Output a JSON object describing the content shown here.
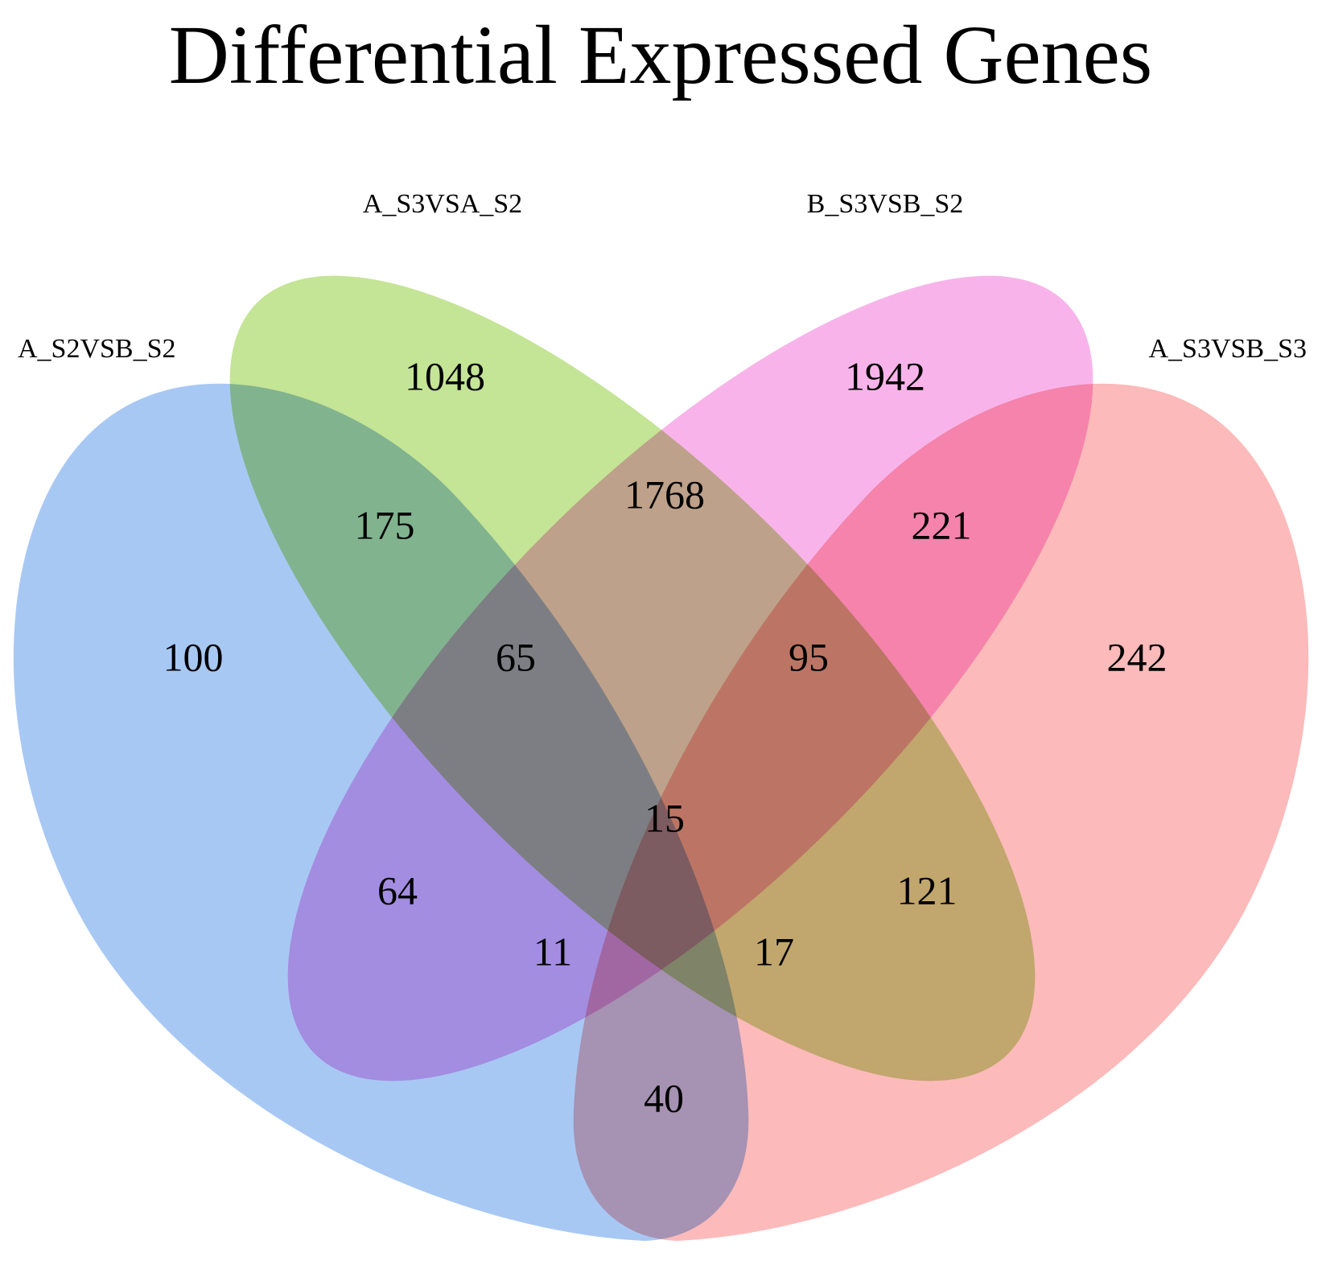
{
  "title": "Differential Expressed Genes",
  "sets": [
    {
      "name": "A_S2VSB_S2",
      "color": "#a8c8f4"
    },
    {
      "name": "A_S3VSA_S2",
      "color": "#c4e496"
    },
    {
      "name": "B_S3VSB_S2",
      "color": "#f8b4ea"
    },
    {
      "name": "A_S3VSB_S3",
      "color": "#fcbaba"
    }
  ],
  "chart_data": {
    "type": "venn",
    "title": "Differential Expressed Genes",
    "sets": [
      "A_S2VSB_S2",
      "A_S3VSA_S2",
      "B_S3VSB_S2",
      "A_S3VSB_S3"
    ],
    "regions": [
      {
        "sets": [
          "A_S2VSB_S2"
        ],
        "count": 100
      },
      {
        "sets": [
          "A_S3VSA_S2"
        ],
        "count": 1048
      },
      {
        "sets": [
          "B_S3VSB_S2"
        ],
        "count": 1942
      },
      {
        "sets": [
          "A_S3VSB_S3"
        ],
        "count": 242
      },
      {
        "sets": [
          "A_S2VSB_S2",
          "A_S3VSA_S2"
        ],
        "count": 175
      },
      {
        "sets": [
          "A_S3VSA_S2",
          "B_S3VSB_S2"
        ],
        "count": 1768
      },
      {
        "sets": [
          "B_S3VSB_S2",
          "A_S3VSB_S3"
        ],
        "count": 221
      },
      {
        "sets": [
          "A_S2VSB_S2",
          "B_S3VSB_S2"
        ],
        "count": 64
      },
      {
        "sets": [
          "A_S3VSA_S2",
          "A_S3VSB_S3"
        ],
        "count": 121
      },
      {
        "sets": [
          "A_S2VSB_S2",
          "A_S3VSB_S3"
        ],
        "count": 40
      },
      {
        "sets": [
          "A_S2VSB_S2",
          "A_S3VSA_S2",
          "B_S3VSB_S2"
        ],
        "count": 65
      },
      {
        "sets": [
          "A_S3VSA_S2",
          "B_S3VSB_S2",
          "A_S3VSB_S3"
        ],
        "count": 95
      },
      {
        "sets": [
          "A_S2VSB_S2",
          "B_S3VSB_S2",
          "A_S3VSB_S3"
        ],
        "count": 11
      },
      {
        "sets": [
          "A_S2VSB_S2",
          "A_S3VSA_S2",
          "A_S3VSB_S3"
        ],
        "count": 17
      },
      {
        "sets": [
          "A_S2VSB_S2",
          "A_S3VSA_S2",
          "B_S3VSB_S2",
          "A_S3VSB_S3"
        ],
        "count": 15
      }
    ]
  }
}
